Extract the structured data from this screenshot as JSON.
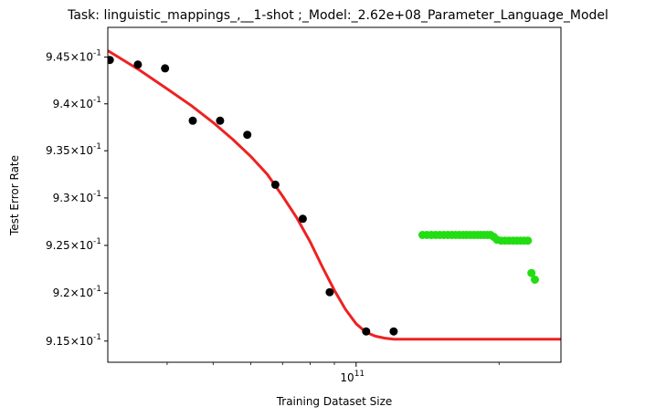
{
  "chart_data": {
    "type": "scatter",
    "title": "Task: linguistic_mappings_,__1-shot ;_Model:_2.62e+08_Parameter_Language_Model",
    "xlabel": "Training Dataset Size",
    "ylabel": "Test Error Rate",
    "x_scale": "log",
    "y_scale": "log",
    "xlim": [
      30000000000.0,
      270000000000.0
    ],
    "ylim": [
      0.9128,
      0.9482
    ],
    "x_ticks": [
      {
        "value": 100000000000.0,
        "label": "10^11"
      }
    ],
    "y_ticks": [
      {
        "value": 0.915,
        "label": "9.15 × 10^-1"
      },
      {
        "value": 0.92,
        "label": "9.2 × 10^-1"
      },
      {
        "value": 0.925,
        "label": "9.25 × 10^-1"
      },
      {
        "value": 0.93,
        "label": "9.3 × 10^-1"
      },
      {
        "value": 0.935,
        "label": "9.35 × 10^-1"
      },
      {
        "value": 0.94,
        "label": "9.4 × 10^-1"
      },
      {
        "value": 0.945,
        "label": "9.45 × 10^-1"
      }
    ],
    "x_minor_ticks": [
      40000000000.0,
      50000000000.0,
      60000000000.0,
      70000000000.0,
      80000000000.0,
      90000000000.0,
      200000000000.0
    ],
    "grid": false,
    "series": [
      {
        "kind": "scatter",
        "color": "#000000",
        "x": [
          30300000000.0,
          34700000000.0,
          39600000000.0,
          45300000000.0,
          51700000000.0,
          59000000000.0,
          67600000000.0,
          77200000000.0,
          88000000000.0,
          105000000000.0,
          120000000000.0
        ],
        "y": [
          0.9447,
          0.9442,
          0.9438,
          0.9382,
          0.9382,
          0.9367,
          0.9314,
          0.9278,
          0.9201,
          0.916,
          0.916
        ]
      },
      {
        "kind": "line",
        "color": "#ee2222",
        "x": [
          30000000000.0,
          35000000000.0,
          40000000000.0,
          45000000000.0,
          50000000000.0,
          55000000000.0,
          60000000000.0,
          65000000000.0,
          70000000000.0,
          75000000000.0,
          80000000000.0,
          85000000000.0,
          90000000000.0,
          95000000000.0,
          100000000000.0,
          105000000000.0,
          110000000000.0,
          115000000000.0,
          120000000000.0,
          130000000000.0,
          150000000000.0,
          200000000000.0,
          270000000000.0
        ],
        "y": [
          0.9457,
          0.9436,
          0.9416,
          0.9398,
          0.938,
          0.9362,
          0.9344,
          0.9325,
          0.9302,
          0.9279,
          0.9254,
          0.9227,
          0.9203,
          0.9183,
          0.9168,
          0.9159,
          0.9155,
          0.9153,
          0.9152,
          0.9152,
          0.9152,
          0.9152,
          0.9152
        ]
      },
      {
        "kind": "scatter",
        "color": "#22dd11",
        "x": [
          138000000000.0,
          141000000000.0,
          144000000000.0,
          147000000000.0,
          150000000000.0,
          153000000000.0,
          156000000000.0,
          159000000000.0,
          162000000000.0,
          165000000000.0,
          168000000000.0,
          171000000000.0,
          174000000000.0,
          177000000000.0,
          180000000000.0,
          183000000000.0,
          186000000000.0,
          189000000000.0,
          192000000000.0,
          195000000000.0,
          198000000000.0,
          202000000000.0,
          206000000000.0,
          210000000000.0,
          214000000000.0,
          218000000000.0,
          222000000000.0,
          226000000000.0,
          230000000000.0,
          234000000000.0,
          238000000000.0
        ],
        "y": [
          0.9261,
          0.9261,
          0.9261,
          0.9261,
          0.9261,
          0.9261,
          0.9261,
          0.9261,
          0.9261,
          0.9261,
          0.9261,
          0.9261,
          0.9261,
          0.9261,
          0.9261,
          0.9261,
          0.9261,
          0.9261,
          0.9261,
          0.9259,
          0.9256,
          0.9255,
          0.9255,
          0.9255,
          0.9255,
          0.9255,
          0.9255,
          0.9255,
          0.9255,
          0.9221,
          0.9214
        ]
      }
    ]
  }
}
